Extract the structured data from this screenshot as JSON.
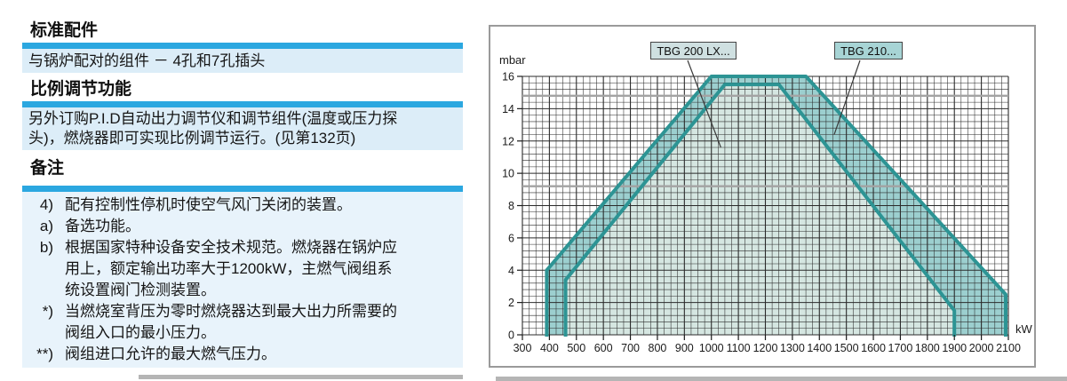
{
  "colors": {
    "cyan_bar": "#2ba7e0",
    "block_bg": "#dcedf8",
    "notes_bg": "#e8f3fb",
    "panel_border": "#9a9a9a",
    "page_shadow": "#b5b5b5",
    "teal_outline": "#2d9494",
    "outer_fill": "#9ccfcf",
    "inner_fill": "#d5e6e1"
  },
  "left_panel": {
    "section1": {
      "heading": "标准配件",
      "line": "与锅炉配对的组件 － 4孔和7孔插头"
    },
    "section2": {
      "heading": "比例调节功能",
      "lines": [
        "另外订购P.I.D自动出力调节仪和调节组件(温度或压力探",
        "头)，燃烧器即可实现比例调节运行。(见第132页)"
      ]
    },
    "section3": {
      "heading": "备注",
      "notes": [
        {
          "marker": "4)",
          "lines": [
            "配有控制性停机时使空气风门关闭的装置。"
          ]
        },
        {
          "marker": "a)",
          "lines": [
            "备选功能。"
          ]
        },
        {
          "marker": "b)",
          "lines": [
            "根据国家特种设备安全技术规范。燃烧器在锅炉应",
            "用上，额定输出功率大于1200kW，主燃气阀组系",
            "统设置阀门检测装置。"
          ]
        },
        {
          "marker": "*)",
          "lines": [
            "当燃烧室背压为零时燃烧器达到最大出力所需要的",
            "阀组入口的最小压力。"
          ]
        },
        {
          "marker": "**)",
          "lines": [
            "阀组进口允许的最大燃气压力。"
          ]
        }
      ]
    }
  },
  "chart_data": {
    "type": "area",
    "title": "",
    "ylabel": "mbar",
    "xlabel": "kW",
    "xlim": [
      300,
      2100
    ],
    "ylim": [
      0,
      16
    ],
    "x_major_step": 100,
    "x_minor_step": 25,
    "y_major_step": 2,
    "y_minor_step": 0.4,
    "x_tick_labels": [
      300,
      400,
      500,
      600,
      700,
      800,
      900,
      1000,
      1100,
      1200,
      1300,
      1400,
      1500,
      1600,
      1700,
      1800,
      1900,
      2000,
      2100
    ],
    "y_tick_labels": [
      0,
      2,
      4,
      6,
      8,
      10,
      12,
      14,
      16
    ],
    "emphasis_gridlines_y": [
      14.8,
      9.2
    ],
    "grid": true,
    "outline_color": "#2d9494",
    "series": [
      {
        "name": "TBG 210...",
        "fill": "#9ccfcf",
        "points_kw_mbar": [
          [
            390,
            0
          ],
          [
            390,
            4
          ],
          [
            1000,
            16
          ],
          [
            1350,
            16
          ],
          [
            2090,
            2.5
          ],
          [
            2090,
            0
          ]
        ]
      },
      {
        "name": "TBG 200 LX...",
        "fill": "#d5e6e1",
        "points_kw_mbar": [
          [
            460,
            0
          ],
          [
            460,
            3.4
          ],
          [
            1050,
            15.5
          ],
          [
            1250,
            15.5
          ],
          [
            1900,
            1.5
          ],
          [
            1900,
            0
          ]
        ]
      }
    ],
    "callouts": [
      {
        "label": "TBG 200 LX...",
        "bg": "#cfe0e1",
        "target_kw": 1035,
        "target_mbar": 11.6
      },
      {
        "label": "TBG 210...",
        "bg": "#a7d4d5",
        "target_kw": 1455,
        "target_mbar": 12.4
      }
    ]
  }
}
